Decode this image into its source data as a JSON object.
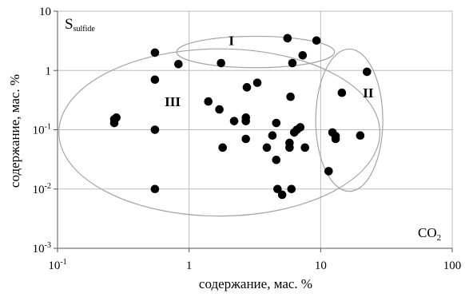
{
  "chart_data": {
    "type": "scatter",
    "title": "",
    "xlabel": "содержание, мас. %",
    "ylabel": "содержание, мас. %",
    "x_scale": "log",
    "y_scale": "log",
    "xlim": [
      0.1,
      100
    ],
    "ylim": [
      0.001,
      10
    ],
    "grid": true,
    "x_ticks": [
      {
        "value": 0.1,
        "base": "10",
        "exp": "-1"
      },
      {
        "value": 1,
        "label": "1"
      },
      {
        "value": 10,
        "label": "10"
      },
      {
        "value": 100,
        "label": "100"
      }
    ],
    "y_ticks": [
      {
        "value": 10,
        "label": "10"
      },
      {
        "value": 1,
        "label": "1"
      },
      {
        "value": 0.1,
        "base": "10",
        "exp": "-1"
      },
      {
        "value": 0.01,
        "base": "10",
        "exp": "-2"
      },
      {
        "value": 0.001,
        "base": "10",
        "exp": "-3"
      }
    ],
    "corner_labels": {
      "y_variable": {
        "main": "S",
        "sub": "sulfide"
      },
      "x_variable": {
        "main": "CO",
        "sub": "2"
      }
    },
    "groups": [
      {
        "label": "I",
        "center": [
          3.2,
          2.05
        ],
        "radius_decades": [
          0.6,
          0.265
        ],
        "label_at": [
          2.1,
          3.2
        ]
      },
      {
        "label": "II",
        "center": [
          16.5,
          0.145
        ],
        "radius_decades": [
          0.255,
          1.2
        ],
        "label_at": [
          23,
          0.42
        ]
      },
      {
        "label": "III",
        "center": [
          1.7,
          0.09
        ],
        "radius_decades": [
          1.22,
          1.41
        ],
        "label_at": [
          0.75,
          0.3
        ]
      }
    ],
    "series": [
      {
        "values": [
          {
            "x": 0.55,
            "y": 2.0
          },
          {
            "x": 0.83,
            "y": 1.28
          },
          {
            "x": 1.75,
            "y": 1.33
          },
          {
            "x": 5.6,
            "y": 3.5
          },
          {
            "x": 9.3,
            "y": 3.2
          },
          {
            "x": 6.1,
            "y": 1.33
          },
          {
            "x": 7.3,
            "y": 1.8
          },
          {
            "x": 22.5,
            "y": 0.95
          },
          {
            "x": 14.5,
            "y": 0.42
          },
          {
            "x": 12.3,
            "y": 0.09
          },
          {
            "x": 13.0,
            "y": 0.07
          },
          {
            "x": 13.0,
            "y": 0.078
          },
          {
            "x": 20.0,
            "y": 0.08
          },
          {
            "x": 11.5,
            "y": 0.02
          },
          {
            "x": 0.27,
            "y": 0.15
          },
          {
            "x": 0.27,
            "y": 0.13
          },
          {
            "x": 0.28,
            "y": 0.16
          },
          {
            "x": 0.55,
            "y": 0.7
          },
          {
            "x": 0.55,
            "y": 0.1
          },
          {
            "x": 0.55,
            "y": 0.01
          },
          {
            "x": 1.4,
            "y": 0.3
          },
          {
            "x": 1.7,
            "y": 0.22
          },
          {
            "x": 1.8,
            "y": 0.05
          },
          {
            "x": 2.2,
            "y": 0.14
          },
          {
            "x": 2.7,
            "y": 0.16
          },
          {
            "x": 2.7,
            "y": 0.14
          },
          {
            "x": 2.7,
            "y": 0.07
          },
          {
            "x": 2.75,
            "y": 0.52
          },
          {
            "x": 3.3,
            "y": 0.62
          },
          {
            "x": 3.9,
            "y": 0.05
          },
          {
            "x": 4.3,
            "y": 0.08
          },
          {
            "x": 4.6,
            "y": 0.13
          },
          {
            "x": 4.6,
            "y": 0.031
          },
          {
            "x": 4.7,
            "y": 0.01
          },
          {
            "x": 5.1,
            "y": 0.008
          },
          {
            "x": 5.8,
            "y": 0.06
          },
          {
            "x": 5.8,
            "y": 0.05
          },
          {
            "x": 5.9,
            "y": 0.36
          },
          {
            "x": 6.3,
            "y": 0.09
          },
          {
            "x": 6.6,
            "y": 0.1
          },
          {
            "x": 7.0,
            "y": 0.11
          },
          {
            "x": 7.6,
            "y": 0.05
          },
          {
            "x": 6.0,
            "y": 0.01
          }
        ]
      }
    ]
  },
  "colors": {
    "point": "#000000",
    "grid": "#bdbdbd",
    "axis": "#555555",
    "ellipse": "#a3a3a3"
  }
}
